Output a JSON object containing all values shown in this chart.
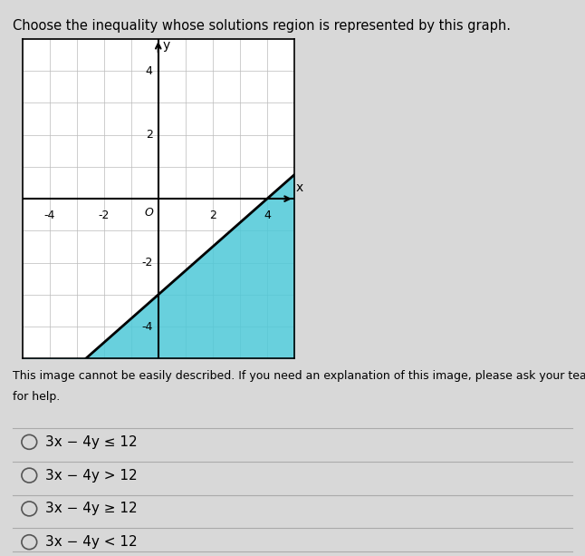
{
  "title": "Choose the inequality whose solutions region is represented by this graph.",
  "graph_xlim": [
    -5,
    5
  ],
  "graph_ylim": [
    -5,
    5
  ],
  "x_ticks_labeled": [
    -4,
    -2,
    2,
    4
  ],
  "y_ticks_labeled": [
    -4,
    -2,
    2,
    4
  ],
  "line_color": "#000000",
  "shade_color": "#4dc8d8",
  "shade_alpha": 0.85,
  "grid_color": "#bbbbbb",
  "page_bg": "#d8d8d8",
  "graph_bg": "#ffffff",
  "options_bg": "#d8d8d8",
  "options": [
    "3x − 4y ≤ 12",
    "3x − 4y > 12",
    "3x − 4y ≥ 12",
    "3x − 4y < 12"
  ],
  "desc_line1": "This image cannot be easily described. If you need an explanation of this image, please ask your teacher",
  "desc_line2": "for help.",
  "font_size_title": 10.5,
  "font_size_options": 11,
  "font_size_axis_labels": 9,
  "font_size_desc": 9
}
